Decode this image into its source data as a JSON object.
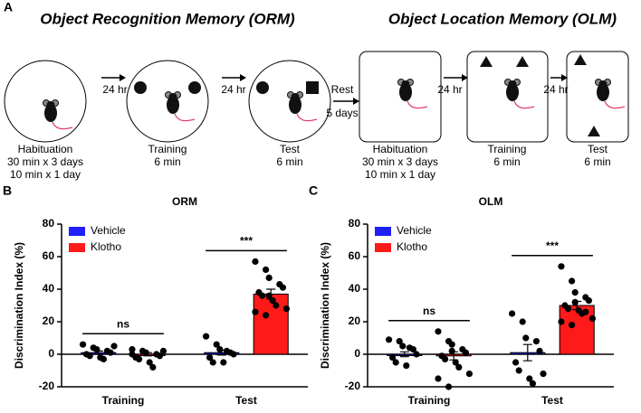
{
  "panel_a": {
    "label": "A",
    "orm_title": "Object Recognition Memory (ORM)",
    "olm_title": "Object Location Memory (OLM)",
    "intervals": [
      "24 hr",
      "24 hr",
      "24 hr",
      "24 hr"
    ],
    "rest": [
      "Rest",
      "5 days"
    ],
    "orm_stages": [
      [
        "Habituation",
        "30 min x 3 days",
        "10 min x 1 day"
      ],
      [
        "Training",
        "6 min"
      ],
      [
        "Test",
        "6 min"
      ]
    ],
    "olm_stages": [
      [
        "Habituation",
        "30 min x 3 days",
        "10 min x 1 day"
      ],
      [
        "Training",
        "6 min"
      ],
      [
        "Test",
        "6 min"
      ]
    ]
  },
  "chart_data": [
    {
      "panel": "B",
      "type": "bar",
      "title": "ORM",
      "ylabel": "Discrimination Index (%)",
      "categories": [
        "Training",
        "Test"
      ],
      "series": [
        {
          "name": "Vehicle",
          "color": "#1f1fff",
          "values": [
            1,
            1
          ],
          "errors": [
            1,
            1.5
          ],
          "points": [
            [
              6,
              4,
              3,
              2,
              1,
              0,
              -1,
              -2,
              -3,
              5
            ],
            [
              11,
              6,
              3,
              1,
              0,
              -2,
              -5,
              -5,
              2
            ]
          ]
        },
        {
          "name": "Klotho",
          "color": "#ff1a1a",
          "values": [
            0,
            37
          ],
          "errors": [
            1,
            3
          ],
          "points": [
            [
              3,
              2,
              1,
              0,
              -1,
              -2,
              -3,
              -5,
              -8,
              2,
              0
            ],
            [
              57,
              52,
              47,
              43,
              41,
              38,
              36,
              33,
              30,
              28,
              26,
              24,
              36
            ]
          ]
        }
      ],
      "annotations": [
        "ns",
        "***"
      ],
      "ylim": [
        -20,
        80
      ],
      "yticks": [
        -20,
        0,
        20,
        40,
        60,
        80
      ],
      "legend": "upper left"
    },
    {
      "panel": "C",
      "type": "bar",
      "title": "OLM",
      "ylabel": "Discrimination Index (%)",
      "categories": [
        "Training",
        "Test"
      ],
      "series": [
        {
          "name": "Vehicle",
          "color": "#1f1fff",
          "values": [
            0,
            1
          ],
          "errors": [
            1.5,
            5
          ],
          "points": [
            [
              9,
              8,
              5,
              3,
              0,
              -2,
              -5,
              -7,
              4
            ],
            [
              25,
              20,
              10,
              8,
              2,
              -5,
              -10,
              -15,
              -18,
              -12
            ]
          ]
        },
        {
          "name": "Klotho",
          "color": "#ff1a1a",
          "values": [
            -1,
            30
          ],
          "errors": [
            2.5,
            2.5
          ],
          "points": [
            [
              14,
              8,
              6,
              3,
              1,
              -1,
              -3,
              -5,
              -8,
              -12,
              -15,
              -20,
              2
            ],
            [
              54,
              45,
              38,
              35,
              33,
              30,
              28,
              27,
              25,
              22,
              20,
              18,
              32,
              26
            ]
          ]
        }
      ],
      "annotations": [
        "ns",
        "***"
      ],
      "ylim": [
        -20,
        80
      ],
      "yticks": [
        -20,
        0,
        20,
        40,
        60,
        80
      ],
      "legend": "upper left"
    }
  ]
}
